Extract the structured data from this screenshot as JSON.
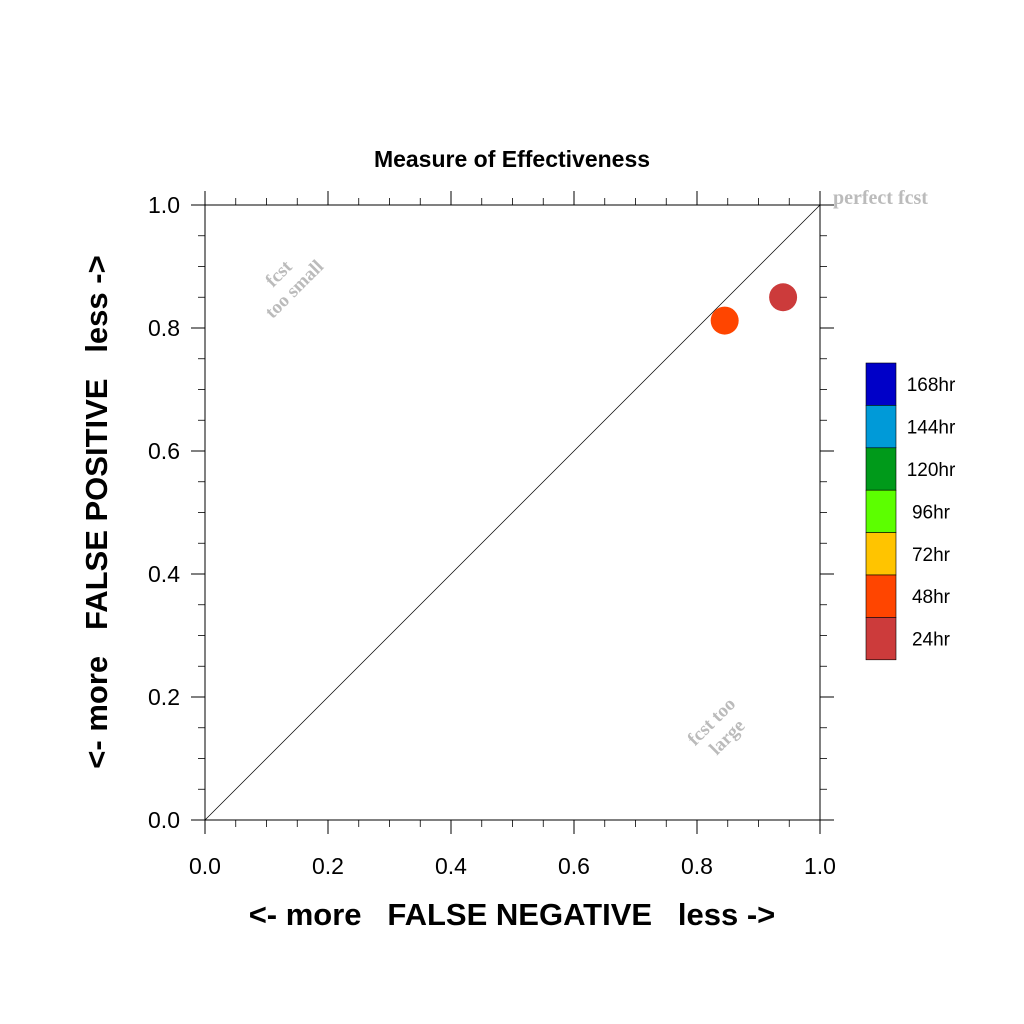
{
  "chart_data": {
    "type": "scatter",
    "title": "Measure of Effectiveness",
    "xlabel": "<- more   FALSE NEGATIVE   less ->",
    "ylabel": "<- more   FALSE POSITIVE   less ->",
    "xlim": [
      0.0,
      1.0
    ],
    "ylim": [
      0.0,
      1.0
    ],
    "x_ticks": [
      "0.0",
      "0.2",
      "0.4",
      "0.6",
      "0.8",
      "1.0"
    ],
    "y_ticks": [
      "0.0",
      "0.2",
      "0.4",
      "0.6",
      "0.8",
      "1.0"
    ],
    "grid": false,
    "diagonal_line": true,
    "annotations": {
      "perfect": "perfect fcst",
      "too_small_line1": "fcst",
      "too_small_line2": "too small",
      "too_large_line1": "fcst too",
      "too_large_line2": "large"
    },
    "points": [
      {
        "label": "48hr",
        "x": 0.845,
        "y": 0.812,
        "color": "#FF4500"
      },
      {
        "label": "24hr",
        "x": 0.94,
        "y": 0.85,
        "color": "#CC3B3B"
      }
    ],
    "legend": {
      "placement": "right",
      "entries": [
        {
          "label": "168hr",
          "color": "#0000C8"
        },
        {
          "label": "144hr",
          "color": "#009AD8"
        },
        {
          "label": "120hr",
          "color": "#009A1A"
        },
        {
          "label": "96hr",
          "color": "#5CFF00"
        },
        {
          "label": "72hr",
          "color": "#FFC400"
        },
        {
          "label": "48hr",
          "color": "#FF4500"
        },
        {
          "label": "24hr",
          "color": "#CC3B3B"
        }
      ]
    },
    "annotation_color": "#bbbbbb"
  }
}
